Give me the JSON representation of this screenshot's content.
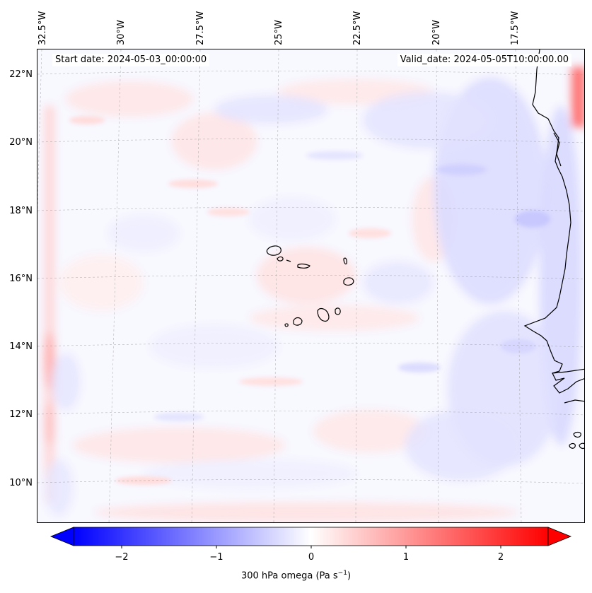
{
  "header": {
    "start_date": "Start date: 2024-05-03_00:00:00",
    "valid_date": "Valid_date: 2024-05-05T10:00:00.00"
  },
  "longitude_labels": [
    "32.5°W",
    "30°W",
    "27.5°W",
    "25°W",
    "22.5°W",
    "20°W",
    "17.5°W"
  ],
  "latitude_labels": [
    "22°N",
    "20°N",
    "18°N",
    "16°N",
    "14°N",
    "12°N",
    "10°N"
  ],
  "colorbar": {
    "ticks": [
      "−2",
      "−1",
      "0",
      "1",
      "2"
    ],
    "title_prefix": "300 hPa omega (Pa s",
    "title_exp": "−1",
    "title_suffix": ")",
    "colors": {
      "negative": "#0000ff",
      "zero": "#ffffff",
      "positive": "#ff0000"
    },
    "range": [
      -2.6,
      2.6
    ],
    "extend": "both"
  },
  "map": {
    "projection": "lambert-conformal",
    "lon_range_deg": [
      -33.0,
      -15.5
    ],
    "lat_range_deg": [
      8.8,
      22.8
    ],
    "gridlines": true,
    "coastline_color": "#000000",
    "colormap": "bwr"
  }
}
